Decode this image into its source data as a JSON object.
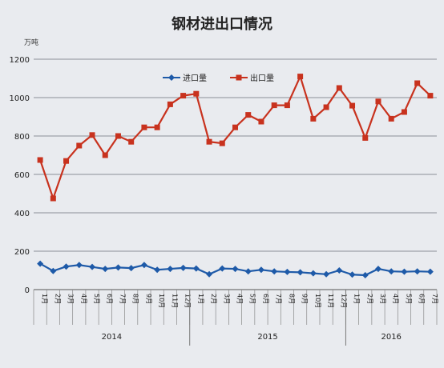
{
  "colors": {
    "background": "#e9ebef",
    "gridline": "#8a8f97",
    "import_series": "#1e5aa8",
    "export_series": "#c8321e",
    "text": "#222222"
  },
  "chart_data": {
    "type": "line",
    "title": "钢材进出口情况",
    "ylabel": "万吨",
    "ylim": [
      0,
      1200
    ],
    "yticks": [
      0,
      200,
      400,
      600,
      800,
      1000,
      1200
    ],
    "grid": true,
    "legend_position": "top-center",
    "x": [
      "1月",
      "2月",
      "3月",
      "4月",
      "5月",
      "6月",
      "7月",
      "8月",
      "9月",
      "10月",
      "11月",
      "12月",
      "1月",
      "2月",
      "3月",
      "4月",
      "5月",
      "6月",
      "7月",
      "8月",
      "9月",
      "10月",
      "11月",
      "12月",
      "1月",
      "2月",
      "3月",
      "4月",
      "5月",
      "6月",
      "7月"
    ],
    "year_groups": [
      {
        "label": "2014",
        "count": 12
      },
      {
        "label": "2015",
        "count": 12
      },
      {
        "label": "2016",
        "count": 7
      }
    ],
    "series": [
      {
        "name": "进口量",
        "marker": "diamond",
        "values": [
          135,
          97,
          120,
          128,
          118,
          108,
          115,
          112,
          128,
          103,
          108,
          113,
          110,
          80,
          110,
          108,
          95,
          103,
          95,
          92,
          90,
          85,
          80,
          100,
          78,
          75,
          108,
          95,
          93,
          95,
          93
        ]
      },
      {
        "name": "出口量",
        "marker": "square",
        "values": [
          675,
          475,
          670,
          750,
          805,
          700,
          800,
          770,
          845,
          845,
          965,
          1010,
          1020,
          770,
          762,
          845,
          910,
          875,
          960,
          960,
          1110,
          890,
          950,
          1050,
          958,
          790,
          980,
          890,
          925,
          1075,
          1010
        ]
      }
    ]
  }
}
